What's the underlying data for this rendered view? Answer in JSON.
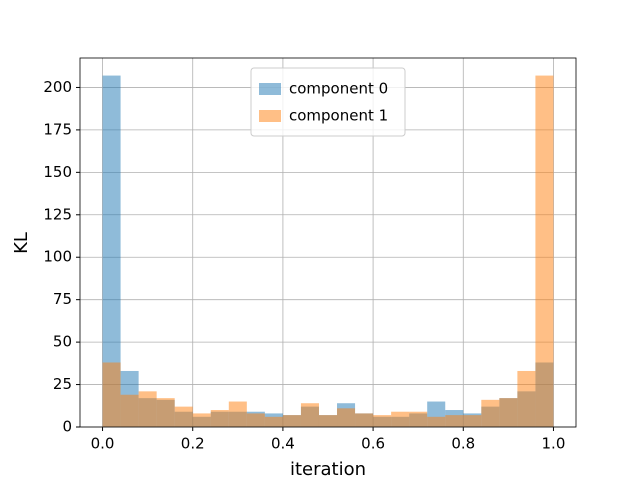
{
  "chart_data": {
    "type": "histogram",
    "xlabel": "iteration",
    "ylabel": "KL",
    "bins": [
      0,
      0.04,
      0.08,
      0.12,
      0.16,
      0.2,
      0.24,
      0.28,
      0.32,
      0.36,
      0.4,
      0.44,
      0.48,
      0.52,
      0.56,
      0.6,
      0.64,
      0.68,
      0.72,
      0.76,
      0.8,
      0.84,
      0.88,
      0.92,
      0.96,
      1
    ],
    "series": [
      {
        "name": "component 0",
        "color": "#1f77b4",
        "values": [
          207,
          33,
          17,
          16,
          9,
          6,
          9,
          9,
          9,
          8,
          7,
          12,
          7,
          14,
          8,
          6,
          6,
          8,
          15,
          10,
          8,
          12,
          17,
          21,
          38
        ]
      },
      {
        "name": "component 1",
        "color": "#ff7f0e",
        "values": [
          38,
          19,
          21,
          17,
          12,
          8,
          10,
          15,
          8,
          6,
          7,
          14,
          7,
          11,
          8,
          7,
          9,
          9,
          6,
          7,
          7,
          16,
          17,
          33,
          207
        ]
      }
    ],
    "alpha": 0.5,
    "xlim": [
      -0.05,
      1.05
    ],
    "xticks": [
      {
        "value": 0,
        "label": "0.0"
      },
      {
        "value": 0.2,
        "label": "0.2"
      },
      {
        "value": 0.4,
        "label": "0.4"
      },
      {
        "value": 0.6,
        "label": "0.6"
      },
      {
        "value": 0.8,
        "label": "0.8"
      },
      {
        "value": 1,
        "label": "1.0"
      }
    ],
    "ylim": [
      0,
      217.35
    ],
    "yticks": [
      0,
      25,
      50,
      75,
      100,
      125,
      150,
      175,
      200
    ],
    "grid": true,
    "legend": "upper center"
  }
}
